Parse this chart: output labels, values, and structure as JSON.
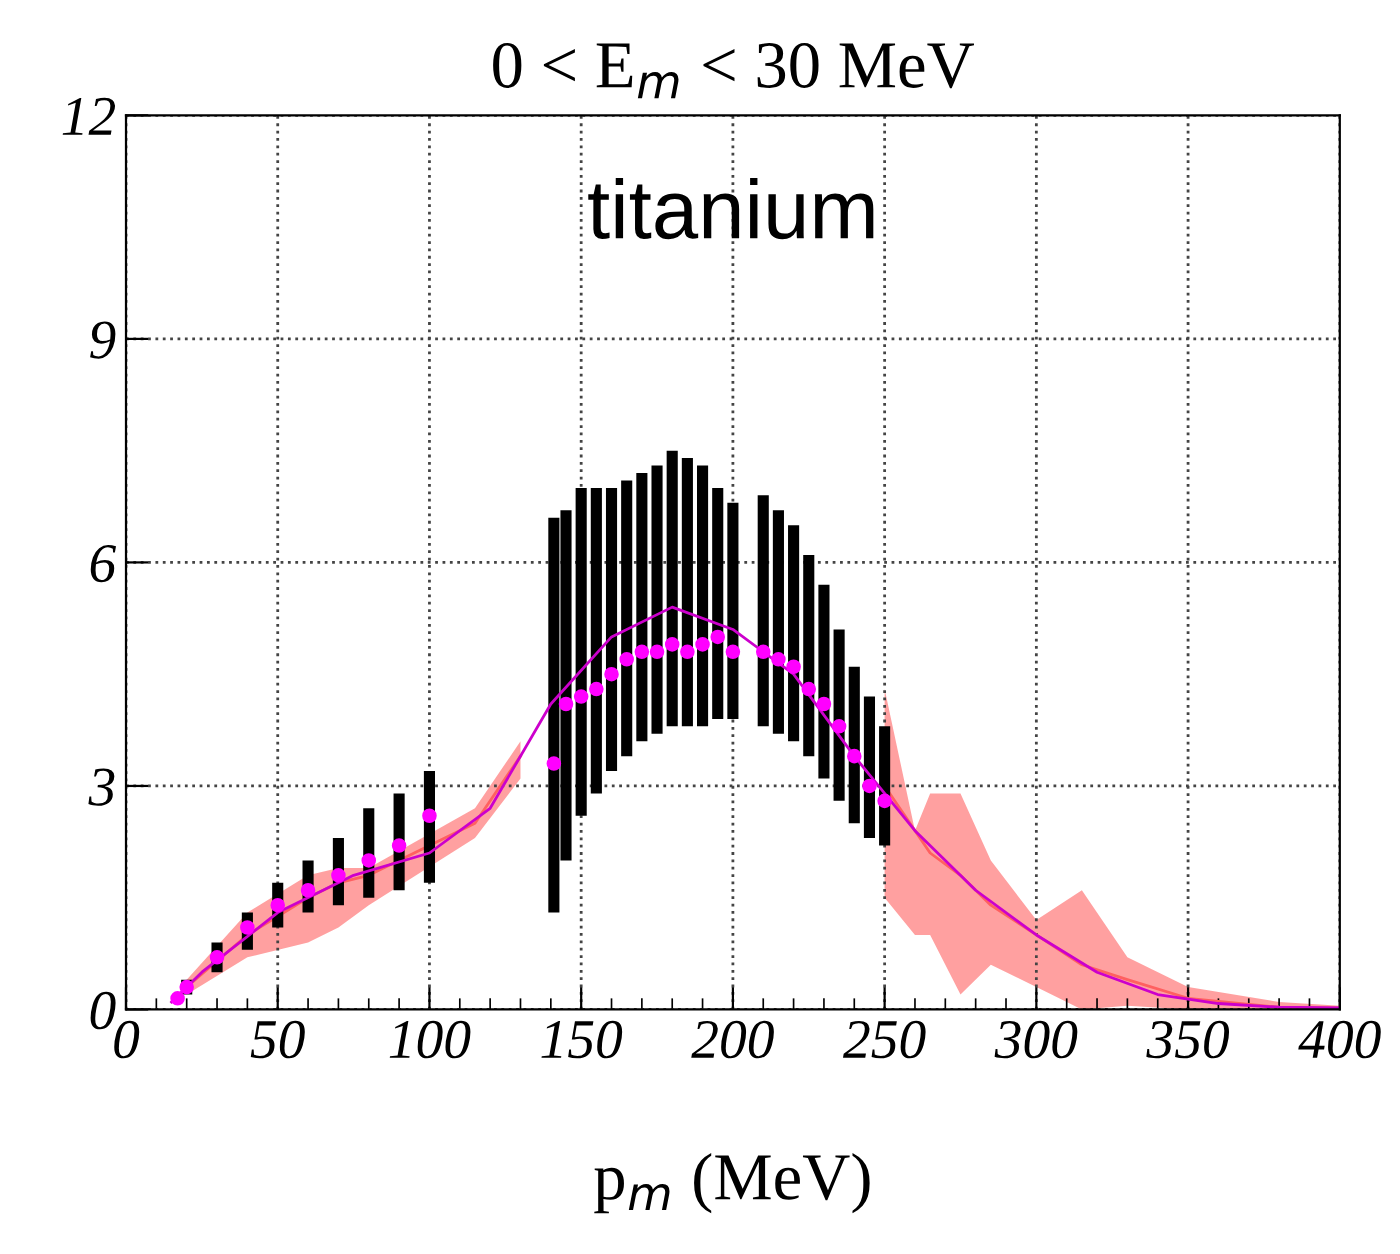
{
  "chart_data": {
    "type": "scatter",
    "title": "0 < E$_{m}$ < 30 MeV",
    "xlabel": "p$_{m}$ (MeV)",
    "annotations": [
      "titanium"
    ],
    "xlim": [
      0,
      400
    ],
    "xticks": [
      0,
      50,
      100,
      150,
      200,
      250,
      300,
      350,
      400
    ],
    "ylim": [
      0,
      12
    ],
    "yticks": [
      0,
      3,
      6,
      9,
      12
    ],
    "grid": true,
    "legend": false,
    "series": [
      {
        "type": "line",
        "color": "#ff6060",
        "x": [
          20,
          40,
          60,
          70,
          80,
          115,
          130,
          190,
          250,
          260,
          265,
          275,
          285,
          300,
          315,
          330,
          350,
          380,
          400
        ],
        "values": [
          0.3,
          1.0,
          1.5,
          1.7,
          1.8,
          2.5,
          3.4,
          null,
          3.0,
          2.4,
          2.1,
          1.8,
          1.4,
          1.0,
          0.6,
          0.4,
          0.15,
          0.03,
          0.02
        ],
        "lower": [
          0.2,
          0.7,
          0.9,
          1.1,
          1.4,
          2.3,
          3.1,
          null,
          1.5,
          1.0,
          1.0,
          0.2,
          0.6,
          0.3,
          0.0,
          0.05,
          0.0,
          0.0,
          0.0
        ],
        "upper": [
          0.4,
          1.3,
          1.8,
          1.9,
          1.9,
          2.7,
          3.6,
          null,
          4.3,
          2.4,
          2.9,
          2.9,
          2.0,
          1.2,
          1.6,
          0.7,
          0.3,
          0.1,
          0.05
        ]
      },
      {
        "color": "#ff00ff",
        "marker": "circle",
        "x": [
          17,
          20,
          30,
          40,
          50,
          60,
          70,
          80,
          90,
          100,
          141,
          145,
          150,
          155,
          160,
          165,
          170,
          175,
          180,
          185,
          190,
          195,
          200,
          210,
          215,
          220,
          225,
          230,
          235,
          240,
          245,
          250
        ],
        "values": [
          0.15,
          0.3,
          0.7,
          1.1,
          1.4,
          1.6,
          1.8,
          2.0,
          2.2,
          2.6,
          3.3,
          4.1,
          4.2,
          4.3,
          4.5,
          4.7,
          4.8,
          4.8,
          4.9,
          4.8,
          4.9,
          5.0,
          4.8,
          4.8,
          4.7,
          4.6,
          4.3,
          4.1,
          3.8,
          3.4,
          3.0,
          2.8
        ],
        "errors": [
          null,
          [
            0.2,
            0.4
          ],
          [
            0.5,
            0.9
          ],
          [
            0.8,
            1.3
          ],
          [
            1.1,
            1.7
          ],
          [
            1.3,
            2.0
          ],
          [
            1.4,
            2.3
          ],
          [
            1.5,
            2.7
          ],
          [
            1.6,
            2.9
          ],
          [
            1.7,
            3.2
          ],
          [
            1.3,
            6.6
          ],
          [
            2.0,
            6.7
          ],
          [
            2.6,
            7.0
          ],
          [
            2.9,
            7.0
          ],
          [
            3.2,
            7.0
          ],
          [
            3.4,
            7.1
          ],
          [
            3.6,
            7.2
          ],
          [
            3.7,
            7.3
          ],
          [
            3.8,
            7.5
          ],
          [
            3.8,
            7.4
          ],
          [
            3.8,
            7.3
          ],
          [
            3.9,
            7.0
          ],
          [
            3.9,
            6.8
          ],
          [
            3.8,
            6.9
          ],
          [
            3.7,
            6.7
          ],
          [
            3.6,
            6.5
          ],
          [
            3.4,
            6.1
          ],
          [
            3.1,
            5.7
          ],
          [
            2.8,
            5.1
          ],
          [
            2.5,
            4.6
          ],
          [
            2.3,
            4.2
          ],
          [
            2.2,
            3.8
          ]
        ]
      },
      {
        "type": "line",
        "color": "#cc00cc",
        "x": [
          15,
          25,
          50,
          75,
          100,
          120,
          140,
          160,
          180,
          200,
          220,
          240,
          260,
          280,
          300,
          320,
          340,
          360,
          380,
          400
        ],
        "values": [
          0.1,
          0.5,
          1.3,
          1.8,
          2.1,
          2.7,
          4.1,
          5.0,
          5.4,
          5.1,
          4.5,
          3.4,
          2.4,
          1.6,
          1.0,
          0.5,
          0.2,
          0.08,
          0.03,
          0.02
        ]
      }
    ]
  }
}
